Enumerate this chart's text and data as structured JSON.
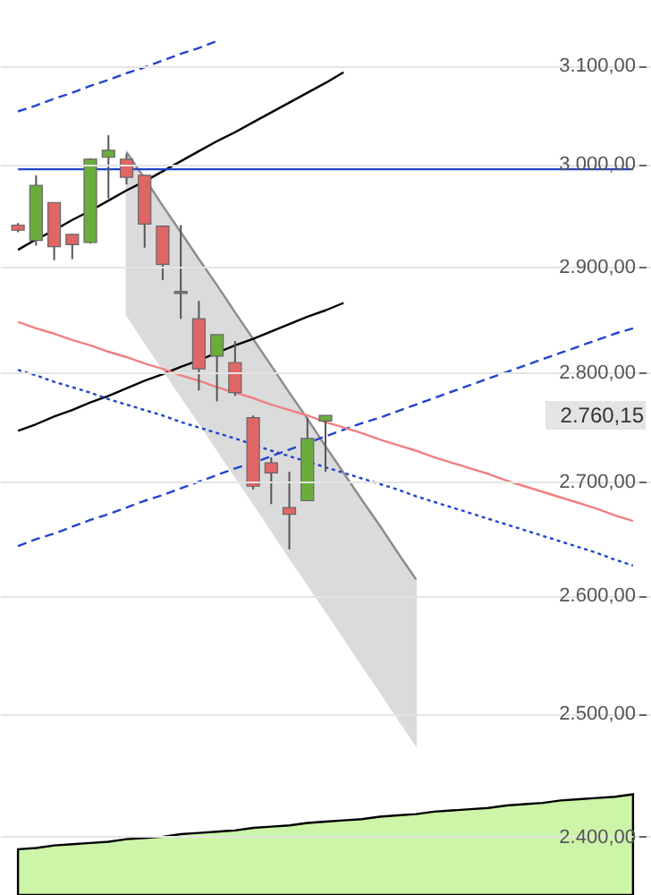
{
  "chart_data": {
    "type": "candlestick",
    "categories": [
      null,
      null,
      null,
      null,
      null,
      null,
      null,
      null,
      null,
      null,
      null,
      null,
      null,
      null,
      null,
      null,
      null,
      null,
      null,
      null,
      null,
      null,
      null,
      null,
      null,
      null,
      null,
      null,
      null,
      null,
      null,
      null,
      null,
      null,
      null
    ],
    "ohlc": [
      [
        2940,
        2942,
        2933,
        2935
      ],
      [
        2925,
        2989,
        2920,
        2979
      ],
      [
        2962,
        2962,
        2906,
        2919
      ],
      [
        2931,
        2931,
        2907,
        2921
      ],
      [
        2923,
        3006,
        2922,
        3005
      ],
      [
        3007,
        3029,
        2966,
        3014
      ],
      [
        3005,
        3010,
        2980,
        2987
      ],
      [
        2989,
        2989,
        2918,
        2941
      ],
      [
        2939,
        2939,
        2887,
        2902
      ],
      [
        2876,
        2940,
        2850,
        2874
      ],
      [
        2850,
        2867,
        2783,
        2803
      ],
      [
        2815,
        2835,
        2773,
        2835
      ],
      [
        2809,
        2829,
        2778,
        2781
      ],
      [
        2758,
        2760,
        2693,
        2696
      ],
      [
        2717,
        2722,
        2680,
        2708
      ],
      [
        2677,
        2709,
        2640,
        2671
      ],
      [
        2683,
        2758,
        2683,
        2739
      ],
      [
        2755,
        2760.15,
        2709,
        2760.15
      ],
      null,
      null,
      null,
      null,
      null,
      null,
      null,
      null,
      null,
      null,
      null,
      null,
      null,
      null,
      null,
      null,
      null
    ],
    "colors": [
      "#e06666",
      "#6aad3d",
      "#e06666",
      "#e06666",
      "#6aad3d",
      "#6aad3d",
      "#e06666",
      "#e06666",
      "#e06666",
      "#808080",
      "#e06666",
      "#6aad3d",
      "#e06666",
      "#e06666",
      "#e06666",
      "#e06666",
      "#6aad3d",
      "#6aad3d",
      null,
      null,
      null,
      null,
      null,
      null,
      null,
      null,
      null,
      null,
      null,
      null,
      null,
      null,
      null,
      null,
      null
    ],
    "series": [
      {
        "type": "area",
        "color": "#ccf5a8",
        "values": [
          2390,
          2391,
          2393,
          2394,
          2395,
          2396,
          2398,
          2399,
          2400,
          2402,
          2403,
          2404,
          2405,
          2407,
          2408,
          2409,
          2411,
          2412,
          2413,
          2414,
          2416,
          2417,
          2418,
          2420,
          2421,
          2422,
          2423,
          2425,
          2426,
          2427,
          2429,
          2430,
          2431,
          2432,
          2434
        ]
      },
      {
        "type": "line",
        "color": "#8c8c8c",
        "line_style": "solid",
        "values": [
          null,
          null,
          null,
          null,
          null,
          null,
          3012,
          2986,
          2959,
          2933,
          2907,
          2882,
          2856,
          2831,
          2806,
          2781,
          2757,
          2732,
          2708,
          2684,
          2661,
          2637,
          2614,
          null,
          null,
          null,
          null,
          null,
          null,
          null,
          null,
          null,
          null,
          null,
          null
        ],
        "lower": [
          null,
          null,
          null,
          null,
          null,
          null,
          2854,
          2828,
          2803,
          2778,
          2754,
          2729,
          2705,
          2681,
          2657,
          2633,
          2610,
          2587,
          2564,
          2541,
          2519,
          2496,
          2474,
          null,
          null,
          null,
          null,
          null,
          null,
          null,
          null,
          null,
          null,
          null,
          null
        ],
        "upper": [
          null,
          null,
          null,
          null,
          null,
          null,
          3012,
          2986,
          2959,
          2933,
          2907,
          2882,
          2856,
          2831,
          2806,
          2781,
          2757,
          2732,
          2708,
          2684,
          2661,
          2637,
          2614,
          null,
          null,
          null,
          null,
          null,
          null,
          null,
          null,
          null,
          null,
          null,
          null
        ]
      },
      {
        "type": "line",
        "color": "#000000",
        "line_style": "solid",
        "values": [
          2916,
          2926,
          2935,
          2945,
          2954,
          2964,
          2974,
          2983,
          2993,
          3003,
          3013,
          3023,
          3032,
          3042,
          3052,
          3062,
          3072,
          3082,
          3093,
          null,
          null,
          null,
          null,
          null,
          null,
          null,
          null,
          null,
          null,
          null,
          null,
          null,
          null,
          null,
          null
        ]
      },
      {
        "type": "line",
        "color": "#000000",
        "line_style": "solid",
        "values": [
          2746,
          2752,
          2759,
          2765,
          2772,
          2778,
          2785,
          2792,
          2798,
          2805,
          2811,
          2818,
          2825,
          2831,
          2838,
          2845,
          2852,
          2858,
          2865,
          null,
          null,
          null,
          null,
          null,
          null,
          null,
          null,
          null,
          null,
          null,
          null,
          null,
          null,
          null,
          null
        ]
      },
      {
        "type": "line",
        "color": "#2244cc",
        "line_style": "solid",
        "values": [
          2995,
          2995,
          2995,
          2995,
          2995,
          2995,
          2995,
          2995,
          2995,
          2995,
          2995,
          2995,
          2995,
          2995,
          2995,
          2995,
          2995,
          2995,
          2995,
          2995,
          2995,
          2995,
          2995,
          2995,
          2995,
          2995,
          2995,
          2995,
          2995,
          2995,
          2995,
          2995,
          2995,
          2995,
          2995
        ]
      },
      {
        "type": "line",
        "color": "#2244cc",
        "line_style": "dashed",
        "values": [
          3053,
          3059,
          3066,
          3072,
          3079,
          3085,
          3092,
          3098,
          3105,
          3112,
          3118,
          3125,
          null,
          null,
          null,
          null,
          null,
          null,
          null,
          null,
          null,
          null,
          null,
          null,
          null,
          null,
          null,
          null,
          null,
          null,
          null,
          null,
          null,
          null,
          null
        ]
      },
      {
        "type": "line",
        "color": "#2244cc",
        "line_style": "dashed",
        "values": [
          2643,
          2649,
          2654,
          2660,
          2666,
          2671,
          2677,
          2683,
          2688,
          2694,
          2700,
          2706,
          2712,
          2717,
          2723,
          2729,
          null,
          2741,
          2747,
          2753,
          2758,
          2764,
          2770,
          2776,
          2782,
          2788,
          2794,
          2800,
          2806,
          2812,
          2818,
          2824,
          2830,
          2836,
          2841
        ]
      },
      {
        "type": "line",
        "color": "#2244cc",
        "line_style": "dotted",
        "values": [
          2802,
          2797,
          2791,
          2786,
          2781,
          2775,
          2770,
          2765,
          2760,
          2754,
          2749,
          2744,
          2739,
          null,
          2728,
          2723,
          2718,
          2713,
          2708,
          2703,
          2698,
          2693,
          2687,
          2682,
          2677,
          2672,
          2667,
          2662,
          2657,
          2652,
          2647,
          2642,
          2637,
          2631,
          2626
        ]
      },
      {
        "type": "line",
        "color": "#f08080",
        "line_style": "solid",
        "values": [
          2847,
          2841,
          2836,
          2830,
          2825,
          2819,
          2814,
          2808,
          2803,
          2797,
          2792,
          2786,
          2781,
          2776,
          2770,
          2765,
          2760,
          2754,
          2749,
          2744,
          2738,
          2733,
          2728,
          2722,
          2717,
          2712,
          2707,
          2701,
          2696,
          2691,
          2686,
          2681,
          2676,
          2670,
          2665
        ]
      }
    ],
    "ylim": [
      2354,
      3168
    ],
    "log": true,
    "yticks": [
      {
        "value": 2400,
        "label": "2.400,00"
      },
      {
        "value": 2500,
        "label": "2.500,00"
      },
      {
        "value": 2600,
        "label": "2.600,00"
      },
      {
        "value": 2700,
        "label": "2.700,00"
      },
      {
        "value": 2800,
        "label": "2.800,00"
      },
      {
        "value": 2900,
        "label": "2.900,00"
      },
      {
        "value": 3000,
        "label": "3.000,00"
      },
      {
        "value": 3100,
        "label": "3.100,00"
      }
    ],
    "tick_labels": "y",
    "grid": "y",
    "annotations": [
      "2.760,15"
    ]
  }
}
